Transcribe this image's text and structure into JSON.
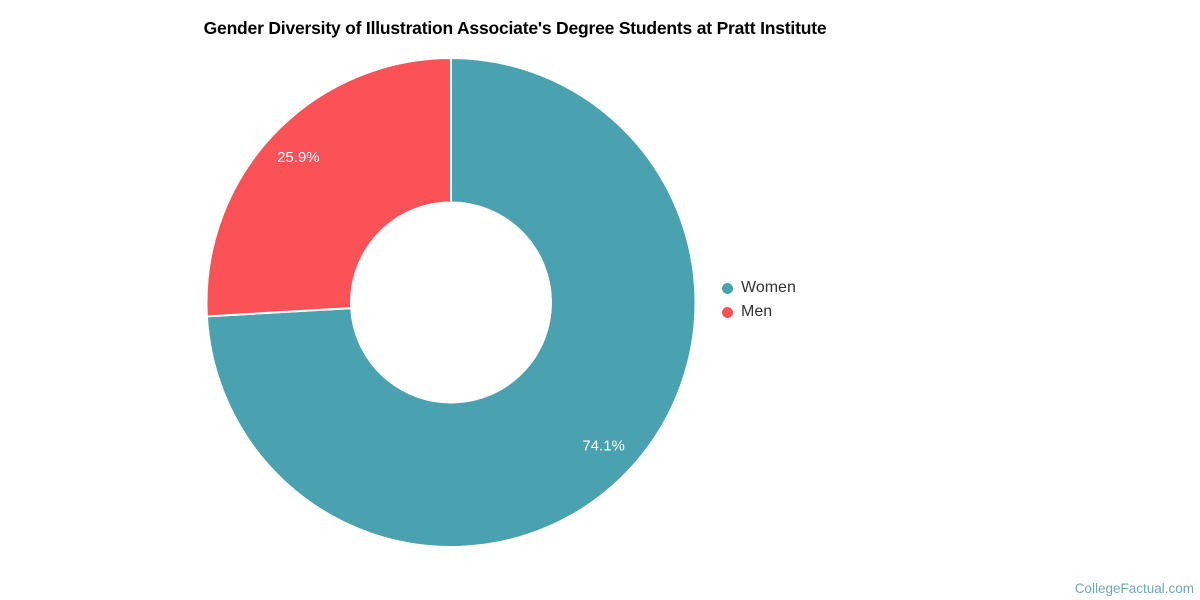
{
  "title": "Gender Diversity of Illustration Associate's Degree Students at Pratt Institute",
  "watermark": "CollegeFactual.com",
  "colors": {
    "women": "#4AA1B0",
    "men": "#FB5257",
    "slice_border": "#ffffff",
    "slice_label_text": "#ffffff",
    "legend_text": "#333333",
    "title_text": "#000000",
    "watermark_text": "#6FA8B5",
    "background": "#ffffff"
  },
  "legend": {
    "position": "right",
    "items": [
      {
        "label": "Women",
        "color": "#4AA1B0"
      },
      {
        "label": "Men",
        "color": "#FB5257"
      }
    ]
  },
  "chart_data": {
    "type": "pie",
    "subtype": "donut",
    "title": "Gender Diversity of Illustration Associate's Degree Students at Pratt Institute",
    "categories": [
      "Women",
      "Men"
    ],
    "values": [
      74.1,
      25.9
    ],
    "data_labels": [
      "74.1%",
      "25.9%"
    ],
    "colors": [
      "#4AA1B0",
      "#FB5257"
    ],
    "unit": "%",
    "start_angle_deg": 0,
    "direction": "clockwise",
    "inner_radius_ratio": 0.41,
    "slice_border_color": "#ffffff",
    "legend_position": "right",
    "grid": false
  }
}
